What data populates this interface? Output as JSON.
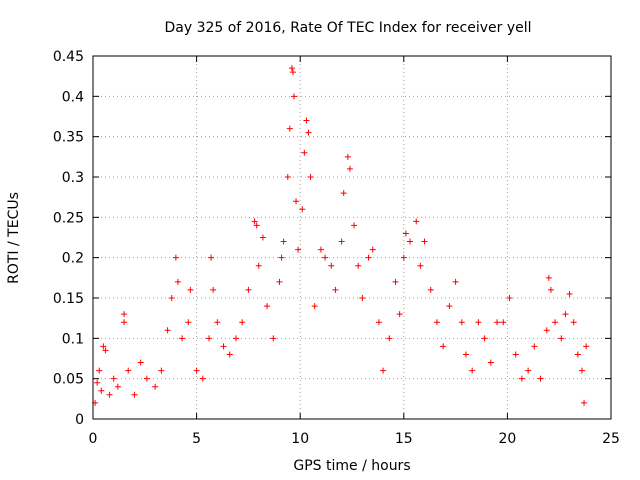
{
  "chart_data": {
    "type": "scatter",
    "title": "Day 325 of 2016, Rate Of TEC Index for receiver yell",
    "xlabel": "GPS time / hours",
    "ylabel": "ROTI / TECUs",
    "xlim": [
      0,
      25
    ],
    "ylim": [
      0,
      0.45
    ],
    "xticks": [
      "0",
      "5",
      "10",
      "15",
      "20",
      "25"
    ],
    "yticks": [
      "0",
      "0.05",
      "0.1",
      "0.15",
      "0.2",
      "0.25",
      "0.3",
      "0.35",
      "0.4",
      "0.45"
    ],
    "grid": true,
    "marker": "+",
    "color": "#ff0000",
    "series": [
      {
        "points": [
          [
            0.1,
            0.02
          ],
          [
            0.2,
            0.045
          ],
          [
            0.3,
            0.06
          ],
          [
            0.4,
            0.035
          ],
          [
            0.5,
            0.09
          ],
          [
            0.6,
            0.085
          ],
          [
            0.8,
            0.03
          ],
          [
            1.0,
            0.05
          ],
          [
            1.2,
            0.04
          ],
          [
            1.5,
            0.13
          ],
          [
            1.5,
            0.12
          ],
          [
            1.7,
            0.06
          ],
          [
            2.0,
            0.03
          ],
          [
            2.3,
            0.07
          ],
          [
            2.6,
            0.05
          ],
          [
            3.0,
            0.04
          ],
          [
            3.3,
            0.06
          ],
          [
            3.6,
            0.11
          ],
          [
            3.8,
            0.15
          ],
          [
            4.0,
            0.2
          ],
          [
            4.1,
            0.17
          ],
          [
            4.3,
            0.1
          ],
          [
            4.6,
            0.12
          ],
          [
            4.7,
            0.16
          ],
          [
            5.0,
            0.06
          ],
          [
            5.3,
            0.05
          ],
          [
            5.6,
            0.1
          ],
          [
            5.7,
            0.2
          ],
          [
            5.8,
            0.16
          ],
          [
            6.0,
            0.12
          ],
          [
            6.3,
            0.09
          ],
          [
            6.6,
            0.08
          ],
          [
            6.9,
            0.1
          ],
          [
            7.2,
            0.12
          ],
          [
            7.5,
            0.16
          ],
          [
            7.8,
            0.245
          ],
          [
            7.9,
            0.24
          ],
          [
            8.0,
            0.19
          ],
          [
            8.2,
            0.225
          ],
          [
            8.4,
            0.14
          ],
          [
            8.7,
            0.1
          ],
          [
            9.0,
            0.17
          ],
          [
            9.1,
            0.2
          ],
          [
            9.2,
            0.22
          ],
          [
            9.4,
            0.3
          ],
          [
            9.5,
            0.36
          ],
          [
            9.6,
            0.435
          ],
          [
            9.65,
            0.43
          ],
          [
            9.7,
            0.4
          ],
          [
            9.8,
            0.27
          ],
          [
            9.9,
            0.21
          ],
          [
            10.1,
            0.26
          ],
          [
            10.2,
            0.33
          ],
          [
            10.3,
            0.37
          ],
          [
            10.4,
            0.355
          ],
          [
            10.5,
            0.3
          ],
          [
            10.7,
            0.14
          ],
          [
            11.0,
            0.21
          ],
          [
            11.2,
            0.2
          ],
          [
            11.5,
            0.19
          ],
          [
            11.7,
            0.16
          ],
          [
            12.0,
            0.22
          ],
          [
            12.1,
            0.28
          ],
          [
            12.3,
            0.325
          ],
          [
            12.4,
            0.31
          ],
          [
            12.6,
            0.24
          ],
          [
            12.8,
            0.19
          ],
          [
            13.0,
            0.15
          ],
          [
            13.3,
            0.2
          ],
          [
            13.5,
            0.21
          ],
          [
            13.8,
            0.12
          ],
          [
            14.0,
            0.06
          ],
          [
            14.3,
            0.1
          ],
          [
            14.6,
            0.17
          ],
          [
            14.8,
            0.13
          ],
          [
            15.0,
            0.2
          ],
          [
            15.1,
            0.23
          ],
          [
            15.3,
            0.22
          ],
          [
            15.6,
            0.245
          ],
          [
            15.8,
            0.19
          ],
          [
            16.0,
            0.22
          ],
          [
            16.3,
            0.16
          ],
          [
            16.6,
            0.12
          ],
          [
            16.9,
            0.09
          ],
          [
            17.2,
            0.14
          ],
          [
            17.5,
            0.17
          ],
          [
            17.8,
            0.12
          ],
          [
            18.0,
            0.08
          ],
          [
            18.3,
            0.06
          ],
          [
            18.6,
            0.12
          ],
          [
            18.9,
            0.1
          ],
          [
            19.2,
            0.07
          ],
          [
            19.5,
            0.12
          ],
          [
            19.8,
            0.12
          ],
          [
            20.1,
            0.15
          ],
          [
            20.4,
            0.08
          ],
          [
            20.7,
            0.05
          ],
          [
            21.0,
            0.06
          ],
          [
            21.3,
            0.09
          ],
          [
            21.6,
            0.05
          ],
          [
            21.9,
            0.11
          ],
          [
            22.0,
            0.175
          ],
          [
            22.1,
            0.16
          ],
          [
            22.3,
            0.12
          ],
          [
            22.6,
            0.1
          ],
          [
            22.8,
            0.13
          ],
          [
            23.0,
            0.155
          ],
          [
            23.2,
            0.12
          ],
          [
            23.4,
            0.08
          ],
          [
            23.6,
            0.06
          ],
          [
            23.8,
            0.09
          ],
          [
            23.7,
            0.02
          ]
        ]
      }
    ]
  }
}
